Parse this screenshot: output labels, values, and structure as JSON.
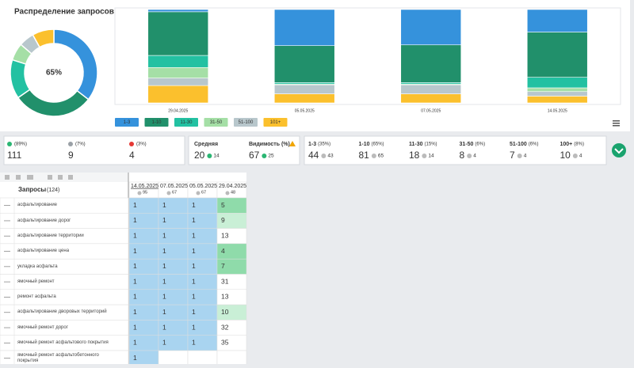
{
  "chart_data": [
    {
      "type": "pie",
      "donut": true,
      "title": "Распределение запросов",
      "center_label": "65%",
      "values": [
        44,
        37,
        18,
        8,
        7,
        10
      ],
      "colors": [
        "#3592dc",
        "#21906b",
        "#23c1a2",
        "#a5dfa6",
        "#b8c7cc",
        "#fbc02d"
      ]
    },
    {
      "type": "bar",
      "stacked": true,
      "categories": [
        "29.04.2025",
        "05.05.2025",
        "07.05.2025",
        "14.05.2025"
      ],
      "series": [
        {
          "name": "1-3",
          "color": "#3592dc",
          "values": [
            3,
            48,
            47,
            30
          ]
        },
        {
          "name": "1-10",
          "color": "#21906b",
          "values": [
            58,
            49,
            50,
            60
          ]
        },
        {
          "name": "11-30",
          "color": "#23c1a2",
          "values": [
            16,
            2,
            2,
            14
          ]
        },
        {
          "name": "31-50",
          "color": "#a5dfa6",
          "values": [
            14,
            1,
            1,
            5
          ]
        },
        {
          "name": "51-100",
          "color": "#b8c7cc",
          "values": [
            10,
            12,
            12,
            6
          ]
        },
        {
          "name": "101+",
          "color": "#fbc02d",
          "values": [
            23,
            12,
            12,
            9
          ]
        }
      ],
      "ylim": [
        0,
        124
      ]
    }
  ],
  "stats": [
    {
      "label": "(89%)",
      "value": 111,
      "icon": "up"
    },
    {
      "label": "(7%)",
      "value": 9,
      "icon": "neutral"
    },
    {
      "label": "(3%)",
      "value": 4,
      "icon": "down"
    }
  ],
  "summary": [
    {
      "label": "Средняя",
      "value": 20,
      "delta": 14
    },
    {
      "label": "Видимость (%)",
      "value": 67,
      "delta": 25
    }
  ],
  "groups": [
    {
      "label": "1-3",
      "share": "(35%)",
      "value": 44,
      "delta": 43
    },
    {
      "label": "1-10",
      "share": "(65%)",
      "value": 81,
      "delta": 65
    },
    {
      "label": "11-30",
      "share": "(15%)",
      "value": 18,
      "delta": 14
    },
    {
      "label": "31-50",
      "share": "(6%)",
      "value": 8,
      "delta": 4
    },
    {
      "label": "51-100",
      "share": "(6%)",
      "value": 7,
      "delta": 4
    },
    {
      "label": "100+",
      "share": "(8%)",
      "value": 10,
      "delta": 4
    }
  ],
  "table": {
    "title": "Запросы",
    "count": "(124)",
    "columns": [
      {
        "date": "14.05.2025",
        "sub": 95
      },
      {
        "date": "07.05.2025",
        "sub": 67
      },
      {
        "date": "05.05.2025",
        "sub": 67
      },
      {
        "date": "29.04.2025",
        "sub": 48
      }
    ],
    "rows": [
      {
        "query": "асфальтирование",
        "values": [
          1,
          1,
          1,
          5
        ]
      },
      {
        "query": "асфальтирование дорог",
        "values": [
          1,
          1,
          1,
          9
        ]
      },
      {
        "query": "асфальтирование территории",
        "values": [
          1,
          1,
          1,
          13
        ]
      },
      {
        "query": "асфальтирование цена",
        "values": [
          1,
          1,
          1,
          4
        ]
      },
      {
        "query": "укладка асфальта",
        "values": [
          1,
          1,
          1,
          7
        ]
      },
      {
        "query": "ямочный ремонт",
        "values": [
          1,
          1,
          1,
          31
        ]
      },
      {
        "query": "ремонт асфальта",
        "values": [
          1,
          1,
          1,
          13
        ]
      },
      {
        "query": "асфальтирование дворовых территорий",
        "values": [
          1,
          1,
          1,
          10
        ]
      },
      {
        "query": "ямочный ремонт дорог",
        "values": [
          1,
          1,
          1,
          32
        ]
      },
      {
        "query": "ямочный ремонт асфальтового покрытия",
        "values": [
          1,
          1,
          1,
          35
        ]
      },
      {
        "query": "ямочный ремонт асфальтобетонного покрытия",
        "values": [
          1,
          null,
          null,
          null
        ]
      }
    ]
  }
}
